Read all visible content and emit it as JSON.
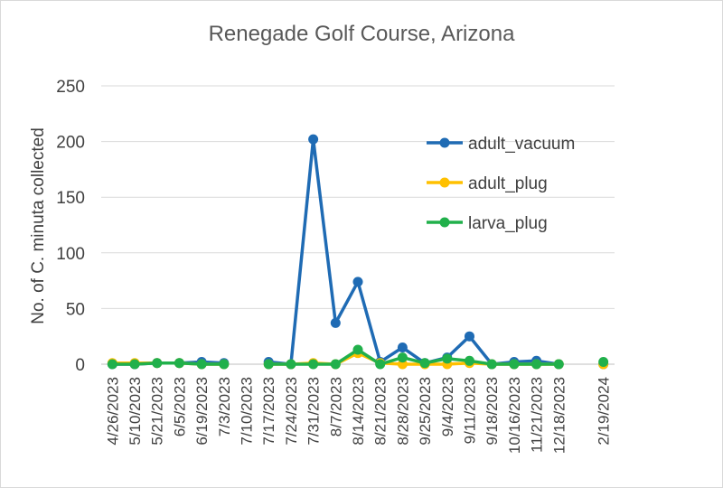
{
  "chart_data": {
    "type": "line",
    "title": "Renegade Golf Course, Arizona",
    "xlabel": "",
    "ylabel": "No. of C. minuta collected",
    "ylim": [
      0,
      250
    ],
    "yticks": [
      0,
      50,
      100,
      150,
      200,
      250
    ],
    "grid": true,
    "legend_position": "right",
    "categories": [
      "4/26/2023",
      "5/10/2023",
      "5/21/2023",
      "6/5/2023",
      "6/19/2023",
      "7/3/2023",
      "7/10/2023",
      "7/17/2023",
      "7/24/2023",
      "7/31/2023",
      "8/7/2023",
      "8/14/2023",
      "8/21/2023",
      "8/28/2023",
      "9/25/2023",
      "9/4/2023",
      "9/11/2023",
      "9/18/2023",
      "10/16/2023",
      "11/21/2023",
      "12/18/2023",
      "",
      "2/19/2024"
    ],
    "series": [
      {
        "name": "adult_vacuum",
        "color": "#1f6bb4",
        "values": [
          0,
          0,
          1,
          1,
          2,
          1,
          null,
          2,
          0,
          202,
          37,
          74,
          2,
          15,
          1,
          6,
          25,
          0,
          2,
          3,
          0,
          null,
          0
        ]
      },
      {
        "name": "adult_plug",
        "color": "#ffc000",
        "values": [
          1,
          1,
          1,
          1,
          0,
          0,
          null,
          0,
          0,
          1,
          0,
          10,
          1,
          0,
          0,
          0,
          1,
          0,
          0,
          0,
          0,
          null,
          0
        ]
      },
      {
        "name": "larva_plug",
        "color": "#21b04b",
        "values": [
          0,
          0,
          1,
          1,
          0,
          0,
          null,
          0,
          0,
          0,
          0,
          13,
          0,
          6,
          1,
          5,
          3,
          0,
          0,
          0,
          0,
          null,
          2
        ]
      }
    ]
  }
}
